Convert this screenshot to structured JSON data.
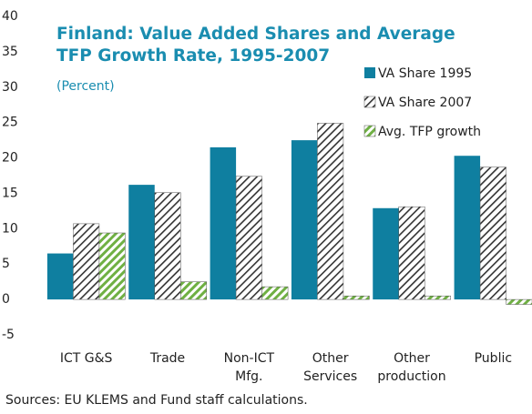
{
  "chart_data": {
    "type": "bar",
    "title": "Finland: Value Added Shares and Average TFP Growth Rate, 1995-2007",
    "subtitle": "(Percent)",
    "categories": [
      "ICT G&S",
      "Trade",
      "Non-ICT\nMfg.",
      "Other\nServices",
      "Other\nproduction",
      "Public"
    ],
    "series": [
      {
        "name": "VA Share 1995",
        "color": "#0f7fa0",
        "hatch": false,
        "values": [
          6.5,
          16.2,
          21.5,
          22.5,
          12.9,
          20.3
        ]
      },
      {
        "name": "VA Share 2007",
        "color": "#333333",
        "hatch": true,
        "values": [
          10.7,
          15.1,
          17.4,
          24.9,
          13.1,
          18.7
        ]
      },
      {
        "name": "Avg. TFP growth",
        "color": "#6fb043",
        "hatch": true,
        "values": [
          9.4,
          2.5,
          1.8,
          0.5,
          0.5,
          -0.7
        ]
      }
    ],
    "ylim": [
      -5,
      40
    ],
    "yticks": [
      -5,
      0,
      5,
      10,
      15,
      20,
      25,
      30,
      35,
      40
    ],
    "source": "Sources: EU KLEMS and Fund staff calculations."
  }
}
